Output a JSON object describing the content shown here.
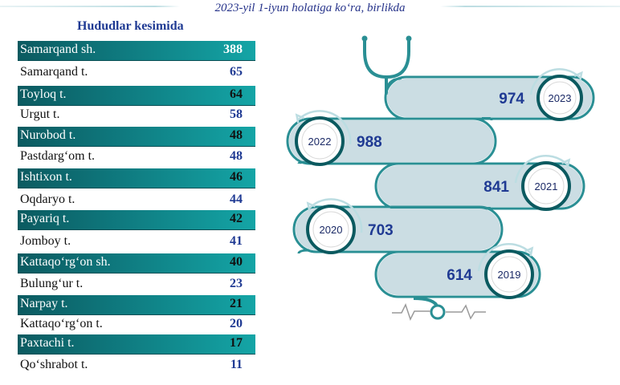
{
  "subtitle": "2023-yil 1-iyun holatiga ko‘ra, birlikda",
  "heading": "Hududlar kesimida",
  "chart_data": [
    {
      "type": "table",
      "title": "Hududlar kesimida",
      "rows": [
        {
          "name": "Samarqand sh.",
          "value": "388",
          "highlight": true
        },
        {
          "name": "Samarqand t.",
          "value": "65",
          "highlight": false
        },
        {
          "name": "Toyloq t.",
          "value": "64",
          "highlight": true
        },
        {
          "name": "Urgut t.",
          "value": "58",
          "highlight": false
        },
        {
          "name": "Nurobod t.",
          "value": "48",
          "highlight": true
        },
        {
          "name": "Pastdarg‘om  t.",
          "value": "48",
          "highlight": false
        },
        {
          "name": "Ishtixon t.",
          "value": "46",
          "highlight": true
        },
        {
          "name": "Oqdaryo t.",
          "value": "44",
          "highlight": false
        },
        {
          "name": "Payariq t.",
          "value": "42",
          "highlight": true
        },
        {
          "name": "Jomboy t.",
          "value": "41",
          "highlight": false
        },
        {
          "name": "Kattaqo‘rg‘on sh.",
          "value": "40",
          "highlight": true
        },
        {
          "name": "Bulung‘ur t.",
          "value": "23",
          "highlight": false
        },
        {
          "name": "Narpay t.",
          "value": "21",
          "highlight": true
        },
        {
          "name": "Kattaqo‘rg‘on t.",
          "value": "20",
          "highlight": false
        },
        {
          "name": "Paxtachi t.",
          "value": "17",
          "highlight": true
        },
        {
          "name": "Qo‘shrabot t.",
          "value": "11",
          "highlight": false
        }
      ]
    },
    {
      "type": "bar",
      "categories": [
        "2023",
        "2022",
        "2021",
        "2020",
        "2019"
      ],
      "values": [
        974,
        988,
        841,
        703,
        614
      ],
      "labels": [
        "974",
        "988",
        "841",
        "703",
        "614"
      ]
    }
  ],
  "colors": {
    "teal_dark": "#0b5a60",
    "teal_light": "#14a5a6",
    "value_blue": "#1f3a93",
    "pill_fill": "#cbdde3",
    "tube": "#2a8f94"
  }
}
